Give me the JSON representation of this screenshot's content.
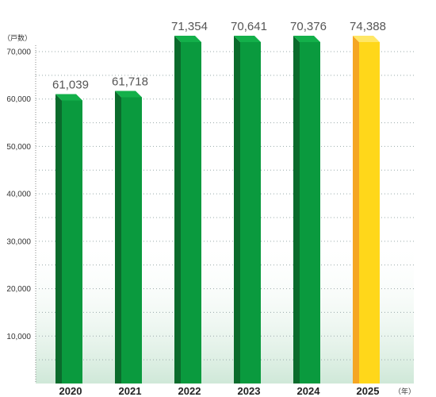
{
  "chart_data": {
    "type": "bar",
    "categories": [
      "2020",
      "2021",
      "2022",
      "2023",
      "2024",
      "2025"
    ],
    "values": [
      61039,
      61718,
      71354,
      70641,
      70376,
      74388
    ],
    "value_labels": [
      "61,039",
      "61,718",
      "71,354",
      "70,641",
      "70,376",
      "74,388"
    ],
    "ylabel": "（戸数）",
    "xlabel": "（年）",
    "ylim": [
      0,
      70000
    ],
    "y_ticks": [
      {
        "value": 10000,
        "label": "10,000"
      },
      {
        "value": 20000,
        "label": "20,000"
      },
      {
        "value": 30000,
        "label": "30,000"
      },
      {
        "value": 40000,
        "label": "40,000"
      },
      {
        "value": 50000,
        "label": "50,000"
      },
      {
        "value": 60000,
        "label": "60,000"
      },
      {
        "value": 70000,
        "label": "70,000"
      }
    ],
    "grid": true,
    "colors": {
      "bar": "#0a9a3e",
      "bar_dark": "#0b6b2c",
      "bar_highlight": "#ffd71a",
      "bar_highlight_side": "#f5a623",
      "background_fade": "#cfe8d8"
    }
  }
}
